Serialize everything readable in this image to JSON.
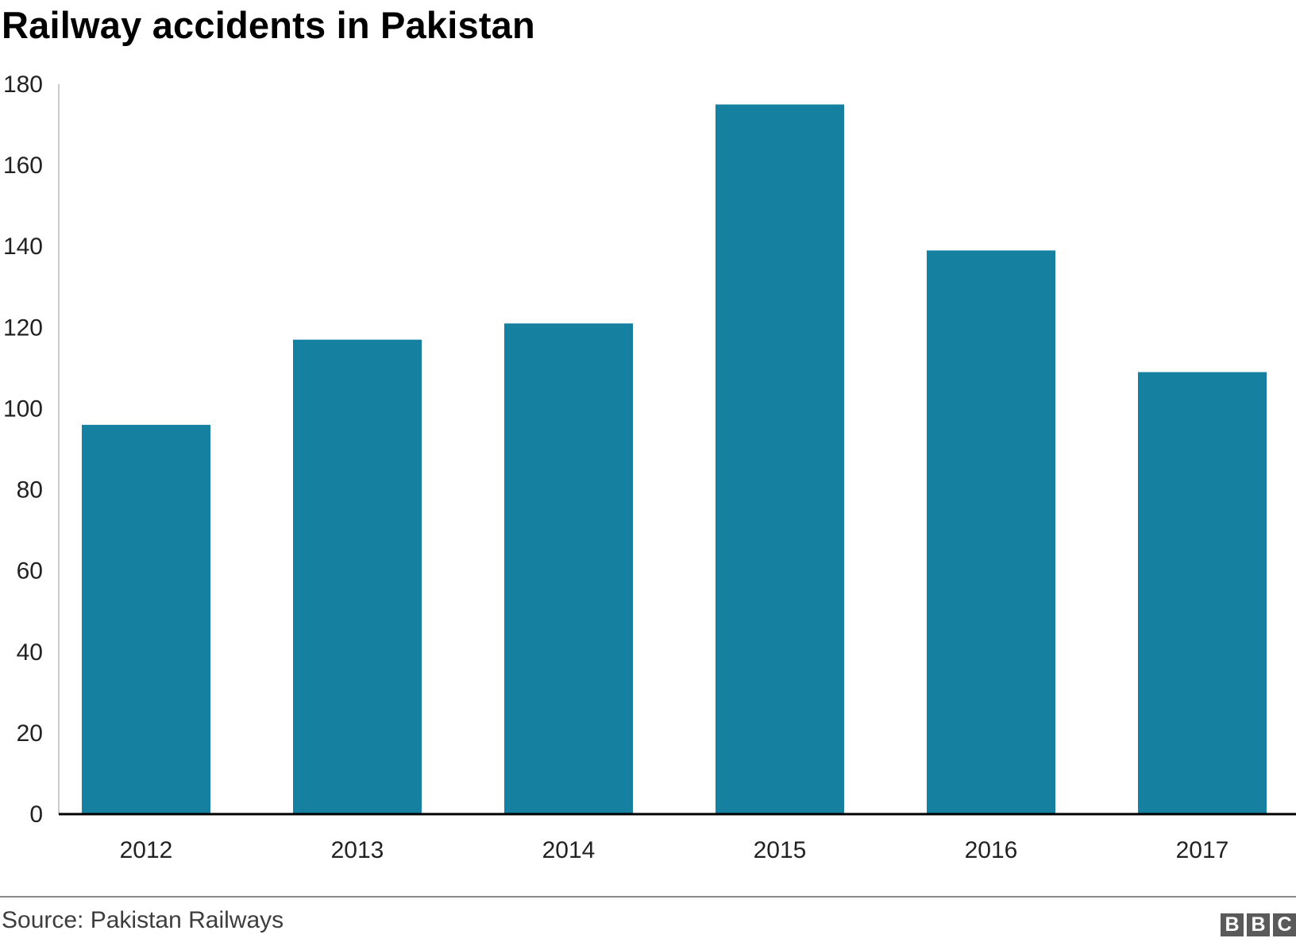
{
  "title": "Railway accidents in Pakistan",
  "source": "Source: Pakistan Railways",
  "brand": {
    "letters": [
      "B",
      "B",
      "C"
    ],
    "color": "#5a5a5a"
  },
  "colors": {
    "bar": "#1580a0",
    "axis": "#000000",
    "axis_light": "#cccccc"
  },
  "chart_data": {
    "type": "bar",
    "title": "Railway accidents in Pakistan",
    "xlabel": "",
    "ylabel": "",
    "categories": [
      "2012",
      "2013",
      "2014",
      "2015",
      "2016",
      "2017"
    ],
    "values": [
      96,
      117,
      121,
      175,
      139,
      109
    ],
    "ylim": [
      0,
      180
    ],
    "yticks": [
      0,
      20,
      40,
      60,
      80,
      100,
      120,
      140,
      160,
      180
    ],
    "grid": false,
    "legend": "none"
  }
}
